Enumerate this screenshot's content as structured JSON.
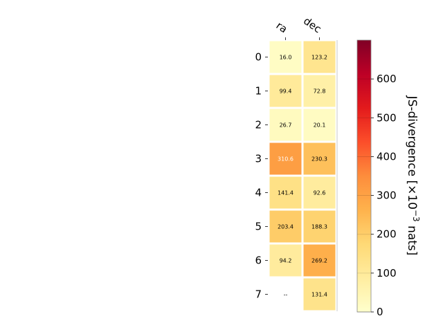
{
  "chart_data": {
    "type": "heatmap",
    "x_categories": [
      "ra",
      "dec"
    ],
    "y_categories": [
      "0",
      "1",
      "2",
      "3",
      "4",
      "5",
      "6",
      "7"
    ],
    "values": [
      [
        16.0,
        123.2
      ],
      [
        99.4,
        72.8
      ],
      [
        26.7,
        20.1
      ],
      [
        310.6,
        230.3
      ],
      [
        141.4,
        92.6
      ],
      [
        203.4,
        188.3
      ],
      [
        94.2,
        269.2
      ],
      [
        null,
        131.4
      ]
    ],
    "cell_labels": [
      [
        "16.0",
        "123.2"
      ],
      [
        "99.4",
        "72.8"
      ],
      [
        "26.7",
        "20.1"
      ],
      [
        "310.6",
        "230.3"
      ],
      [
        "141.4",
        "92.6"
      ],
      [
        "203.4",
        "188.3"
      ],
      [
        "94.2",
        "269.2"
      ],
      [
        "--",
        "131.4"
      ]
    ],
    "colorbar": {
      "label": "JS-divergence [×10",
      "label_exponent": "−3",
      "label_suffix": " nats]",
      "range": [
        0,
        700
      ],
      "ticks": [
        0,
        100,
        200,
        300,
        400,
        500,
        600
      ],
      "tick_labels": [
        "0",
        "100",
        "200",
        "300",
        "400",
        "500",
        "600"
      ],
      "colormap": "YlOrRd"
    }
  }
}
